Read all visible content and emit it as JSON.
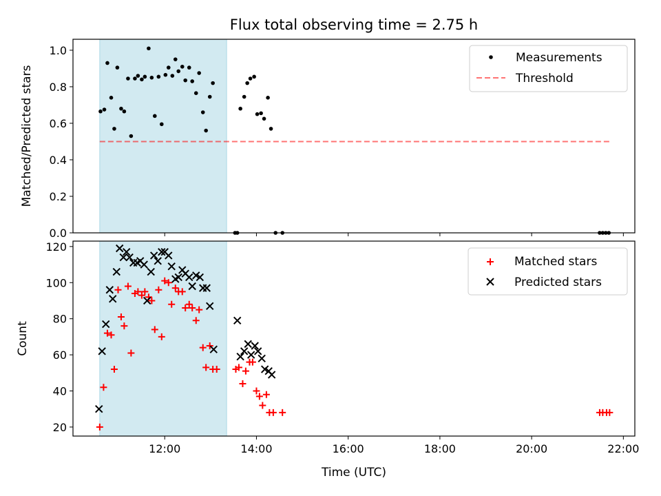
{
  "title": "Flux total observing time = 2.75 h",
  "colors": {
    "shade": "#add8e6",
    "threshold": "#ff0000",
    "matched": "#ff0000",
    "predicted": "#000000",
    "measurement": "#000000"
  },
  "chart_data": [
    {
      "type": "scatter",
      "ylabel": "Matched/Predicted stars",
      "xlim_hours": [
        10.0,
        22.25
      ],
      "ylim": [
        0,
        1.06
      ],
      "yticks": [
        "0.0",
        "0.2",
        "0.4",
        "0.6",
        "0.8",
        "1.0"
      ],
      "yticks_values": [
        0,
        0.2,
        0.4,
        0.6,
        0.8,
        1.0
      ],
      "grid": false,
      "legend_position": "top-right",
      "legend": [
        "Measurements",
        "Threshold"
      ],
      "shaded_interval": [
        "10:35",
        "13:21"
      ],
      "threshold": {
        "name": "Threshold",
        "y": 0.5,
        "x_range": [
          "10:35",
          "21:45"
        ]
      },
      "series": [
        {
          "name": "Measurements",
          "points": [
            [
              "10:36",
              0.665
            ],
            [
              "10:41",
              0.675
            ],
            [
              "10:45",
              0.93
            ],
            [
              "10:50",
              0.74
            ],
            [
              "10:54",
              0.57
            ],
            [
              "10:58",
              0.905
            ],
            [
              "11:03",
              0.68
            ],
            [
              "11:07",
              0.665
            ],
            [
              "11:12",
              0.845
            ],
            [
              "11:16",
              0.53
            ],
            [
              "11:21",
              0.845
            ],
            [
              "11:25",
              0.86
            ],
            [
              "11:30",
              0.84
            ],
            [
              "11:34",
              0.855
            ],
            [
              "11:39",
              1.01
            ],
            [
              "11:43",
              0.85
            ],
            [
              "11:47",
              0.64
            ],
            [
              "11:52",
              0.855
            ],
            [
              "11:56",
              0.595
            ],
            [
              "12:01",
              0.865
            ],
            [
              "12:05",
              0.905
            ],
            [
              "12:10",
              0.86
            ],
            [
              "12:14",
              0.95
            ],
            [
              "12:18",
              0.885
            ],
            [
              "12:23",
              0.91
            ],
            [
              "12:27",
              0.835
            ],
            [
              "12:32",
              0.905
            ],
            [
              "12:36",
              0.83
            ],
            [
              "12:41",
              0.765
            ],
            [
              "12:45",
              0.875
            ],
            [
              "12:50",
              0.66
            ],
            [
              "12:54",
              0.56
            ],
            [
              "12:59",
              0.745
            ],
            [
              "13:03",
              0.82
            ],
            [
              "13:32",
              0.0
            ],
            [
              "13:35",
              0.0
            ],
            [
              "13:39",
              0.68
            ],
            [
              "13:44",
              0.745
            ],
            [
              "13:48",
              0.82
            ],
            [
              "13:52",
              0.845
            ],
            [
              "13:57",
              0.855
            ],
            [
              "14:01",
              0.65
            ],
            [
              "14:06",
              0.655
            ],
            [
              "14:10",
              0.625
            ],
            [
              "14:15",
              0.74
            ],
            [
              "14:19",
              0.57
            ],
            [
              "14:25",
              0.0
            ],
            [
              "14:34",
              0.0
            ],
            [
              "21:29",
              0.0
            ],
            [
              "21:33",
              0.0
            ],
            [
              "21:37",
              0.0
            ],
            [
              "21:41",
              0.0
            ]
          ]
        }
      ]
    },
    {
      "type": "scatter",
      "ylabel": "Count",
      "xlabel": "Time (UTC)",
      "xlim_hours": [
        10.0,
        22.25
      ],
      "ylim": [
        15,
        123
      ],
      "yticks": [
        "20",
        "40",
        "60",
        "80",
        "100",
        "120"
      ],
      "yticks_values": [
        20,
        40,
        60,
        80,
        100,
        120
      ],
      "xticks": [
        "12:00",
        "14:00",
        "16:00",
        "18:00",
        "20:00",
        "22:00"
      ],
      "xticks_values": [
        12,
        14,
        16,
        18,
        20,
        22
      ],
      "grid": false,
      "legend_position": "top-right",
      "legend": [
        "Matched stars",
        "Predicted stars"
      ],
      "shaded_interval": [
        "10:35",
        "13:21"
      ],
      "series": [
        {
          "name": "Matched stars",
          "marker": "plus",
          "points": [
            [
              "10:35",
              20
            ],
            [
              "10:40",
              42
            ],
            [
              "10:45",
              72
            ],
            [
              "10:50",
              71
            ],
            [
              "10:54",
              52
            ],
            [
              "10:59",
              96
            ],
            [
              "11:03",
              81
            ],
            [
              "11:07",
              76
            ],
            [
              "11:12",
              98
            ],
            [
              "11:16",
              61
            ],
            [
              "11:21",
              94
            ],
            [
              "11:25",
              95
            ],
            [
              "11:30",
              93
            ],
            [
              "11:34",
              95
            ],
            [
              "11:39",
              92
            ],
            [
              "11:43",
              90
            ],
            [
              "11:47",
              74
            ],
            [
              "11:52",
              96
            ],
            [
              "11:56",
              70
            ],
            [
              "12:00",
              101
            ],
            [
              "12:05",
              100
            ],
            [
              "12:09",
              88
            ],
            [
              "12:14",
              97
            ],
            [
              "12:18",
              95
            ],
            [
              "12:23",
              95
            ],
            [
              "12:27",
              86
            ],
            [
              "12:32",
              88
            ],
            [
              "12:36",
              86
            ],
            [
              "12:41",
              79
            ],
            [
              "12:45",
              85
            ],
            [
              "12:50",
              64
            ],
            [
              "12:54",
              53
            ],
            [
              "12:59",
              65
            ],
            [
              "13:03",
              52
            ],
            [
              "13:08",
              52
            ],
            [
              "13:33",
              52
            ],
            [
              "13:37",
              53
            ],
            [
              "13:42",
              44
            ],
            [
              "13:46",
              51
            ],
            [
              "13:51",
              56
            ],
            [
              "13:55",
              56
            ],
            [
              "14:00",
              40
            ],
            [
              "14:04",
              37
            ],
            [
              "14:08",
              32
            ],
            [
              "14:13",
              38
            ],
            [
              "14:17",
              28
            ],
            [
              "14:22",
              28
            ],
            [
              "14:34",
              28
            ],
            [
              "21:29",
              28
            ],
            [
              "21:33",
              28
            ],
            [
              "21:38",
              28
            ],
            [
              "21:42",
              28
            ]
          ]
        },
        {
          "name": "Predicted stars",
          "marker": "x",
          "points": [
            [
              "10:34",
              30
            ],
            [
              "10:38",
              62
            ],
            [
              "10:43",
              77
            ],
            [
              "10:48",
              96
            ],
            [
              "10:52",
              91
            ],
            [
              "10:57",
              106
            ],
            [
              "11:01",
              119
            ],
            [
              "11:06",
              114
            ],
            [
              "11:10",
              117
            ],
            [
              "11:14",
              114
            ],
            [
              "11:19",
              111
            ],
            [
              "11:24",
              111
            ],
            [
              "11:28",
              112
            ],
            [
              "11:33",
              110
            ],
            [
              "11:37",
              90
            ],
            [
              "11:42",
              106
            ],
            [
              "11:46",
              115
            ],
            [
              "11:51",
              112
            ],
            [
              "11:56",
              117
            ],
            [
              "12:00",
              117
            ],
            [
              "12:05",
              115
            ],
            [
              "12:09",
              109
            ],
            [
              "12:14",
              102
            ],
            [
              "12:18",
              103
            ],
            [
              "12:23",
              107
            ],
            [
              "12:27",
              105
            ],
            [
              "12:32",
              103
            ],
            [
              "12:36",
              98
            ],
            [
              "12:41",
              104
            ],
            [
              "12:46",
              103
            ],
            [
              "12:50",
              97
            ],
            [
              "12:55",
              97
            ],
            [
              "12:59",
              87
            ],
            [
              "13:04",
              63
            ],
            [
              "13:35",
              79
            ],
            [
              "13:39",
              59
            ],
            [
              "13:44",
              62
            ],
            [
              "13:49",
              66
            ],
            [
              "13:53",
              60
            ],
            [
              "13:58",
              65
            ],
            [
              "14:02",
              62
            ],
            [
              "14:07",
              58
            ],
            [
              "14:11",
              52
            ],
            [
              "14:16",
              51
            ],
            [
              "14:20",
              49
            ]
          ]
        }
      ]
    }
  ]
}
